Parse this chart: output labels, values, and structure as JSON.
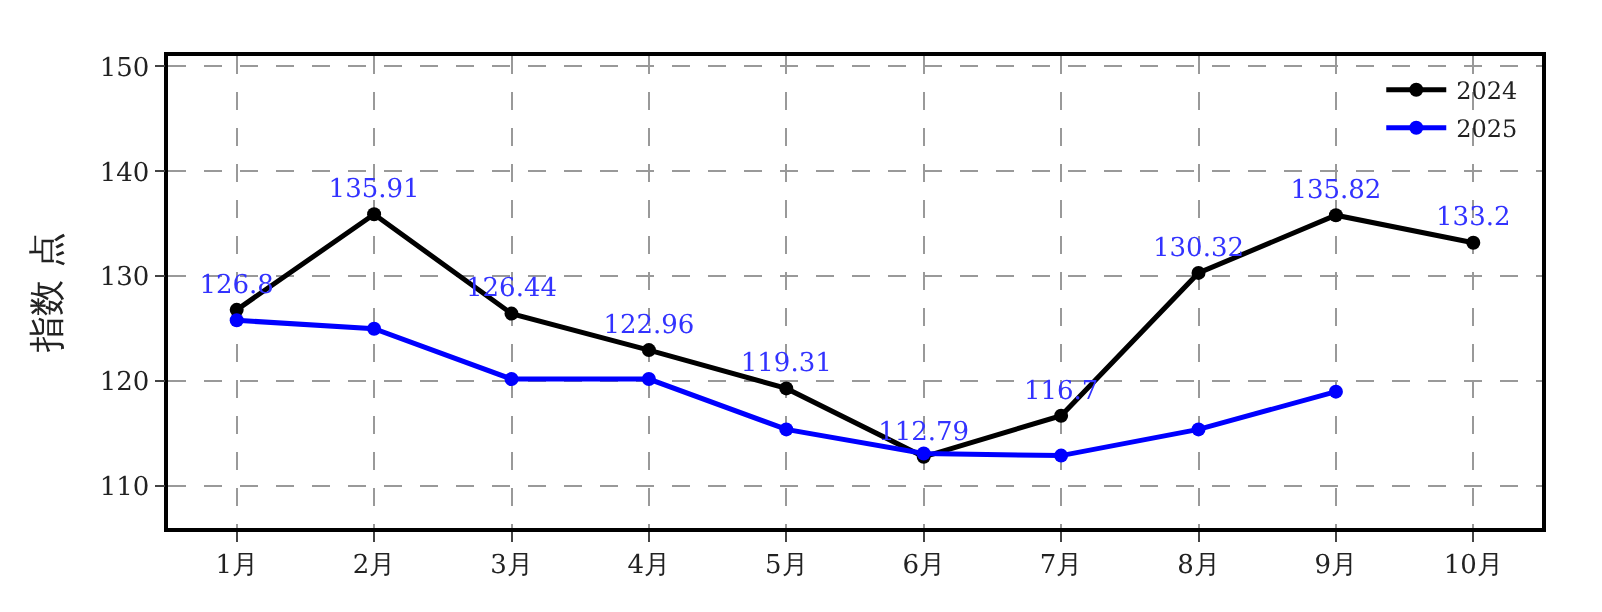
{
  "chart_data": {
    "type": "line",
    "ylabel": "指数 点",
    "categories": [
      "1月",
      "2月",
      "3月",
      "4月",
      "5月",
      "6月",
      "7月",
      "8月",
      "9月",
      "10月"
    ],
    "series": [
      {
        "name": "2024",
        "color": "#000000",
        "values": [
          126.8,
          135.91,
          126.44,
          122.96,
          119.31,
          112.79,
          116.7,
          130.32,
          135.82,
          133.2
        ],
        "value_labels": [
          "126.8",
          "135.91",
          "126.44",
          "122.96",
          "119.31",
          "112.79",
          "116.7",
          "130.32",
          "135.82",
          "133.2"
        ]
      },
      {
        "name": "2025",
        "color": "#0000ff",
        "values": [
          125.8,
          125.0,
          120.2,
          120.2,
          115.4,
          113.1,
          112.9,
          115.4,
          119.0,
          null
        ]
      }
    ],
    "ylim": [
      106,
      151
    ],
    "yticks": [
      110,
      120,
      130,
      140,
      150
    ],
    "grid": true,
    "legend": "top right",
    "marker": "circle",
    "line_style": "solid"
  }
}
